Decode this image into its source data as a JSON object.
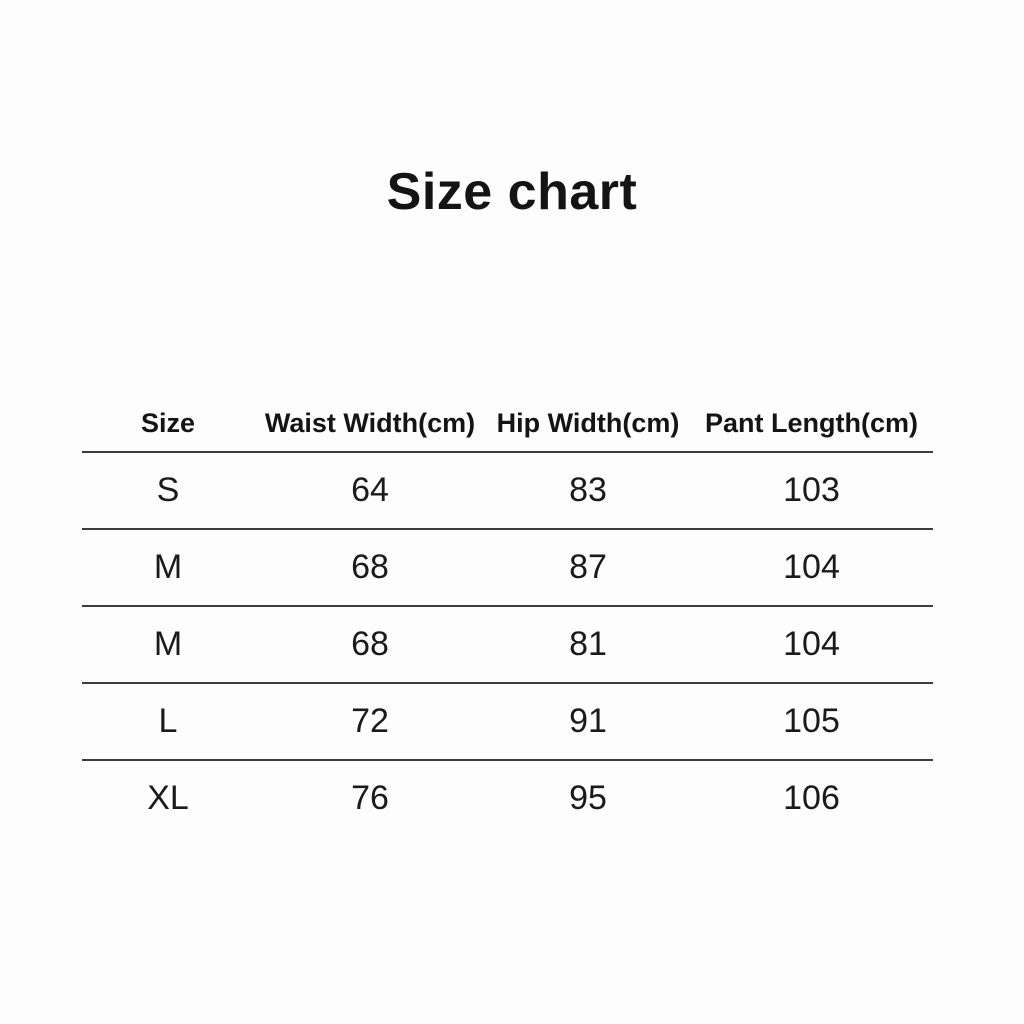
{
  "title": "Size chart",
  "colors": {
    "text": "#141414",
    "divider": "#3c3c3c",
    "background": "#fdfdfd"
  },
  "chart_data": {
    "type": "table",
    "title": "Size chart",
    "columns": [
      "Size",
      "Waist Width(cm)",
      "Hip Width(cm)",
      "Pant Length(cm)"
    ],
    "rows": [
      [
        "S",
        "64",
        "83",
        "103"
      ],
      [
        "M",
        "68",
        "87",
        "104"
      ],
      [
        "M",
        "68",
        "81",
        "104"
      ],
      [
        "L",
        "72",
        "91",
        "105"
      ],
      [
        "XL",
        "76",
        "95",
        "106"
      ]
    ],
    "layout": {
      "legend": "none",
      "grid": "horizontal-dividers",
      "last_row_divider": false
    }
  }
}
